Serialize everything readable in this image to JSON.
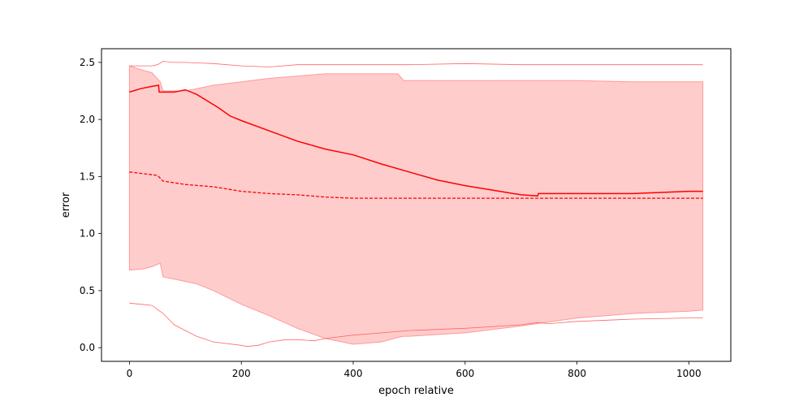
{
  "chart_data": {
    "type": "area",
    "title": "",
    "xlabel": "epoch relative",
    "ylabel": "error",
    "xlim": [
      -50,
      1075
    ],
    "ylim": [
      -0.12,
      2.62
    ],
    "grid": false,
    "legend": "none",
    "xticks": [
      0,
      200,
      400,
      600,
      800,
      1000
    ],
    "yticks": [
      0.0,
      0.5,
      1.0,
      1.5,
      2.0,
      2.5
    ],
    "xtick_labels": [
      "0",
      "200",
      "400",
      "600",
      "800",
      "1000"
    ],
    "ytick_labels": [
      "0.0",
      "0.5",
      "1.0",
      "1.5",
      "2.0",
      "2.5"
    ],
    "colors": {
      "line": "#ff0000",
      "band_fill": "#ffcccc",
      "band_edge": "#ff9999",
      "outer": "#ff6666"
    },
    "series": [
      {
        "role": "solid-line",
        "x": [
          0,
          20,
          40,
          52,
          53,
          60,
          80,
          100,
          120,
          140,
          160,
          180,
          200,
          250,
          300,
          350,
          400,
          450,
          500,
          550,
          600,
          650,
          700,
          730,
          731,
          800,
          900,
          950,
          1000,
          1025
        ],
        "y": [
          2.24,
          2.27,
          2.29,
          2.3,
          2.24,
          2.24,
          2.24,
          2.26,
          2.22,
          2.16,
          2.1,
          2.03,
          1.99,
          1.9,
          1.81,
          1.74,
          1.69,
          1.61,
          1.54,
          1.47,
          1.42,
          1.38,
          1.34,
          1.33,
          1.35,
          1.35,
          1.35,
          1.36,
          1.37,
          1.37
        ]
      },
      {
        "role": "dashed-line",
        "x": [
          0,
          50,
          60,
          100,
          150,
          200,
          250,
          300,
          350,
          400,
          450,
          500,
          600,
          700,
          800,
          900,
          1025
        ],
        "y": [
          1.54,
          1.51,
          1.46,
          1.43,
          1.41,
          1.37,
          1.35,
          1.34,
          1.32,
          1.31,
          1.31,
          1.31,
          1.31,
          1.31,
          1.31,
          1.31,
          1.31
        ]
      },
      {
        "role": "band",
        "x": [
          0,
          25,
          40,
          55,
          60,
          80,
          100,
          120,
          150,
          200,
          250,
          300,
          350,
          400,
          450,
          480,
          490,
          500,
          600,
          700,
          800,
          900,
          1000,
          1025
        ],
        "upper": [
          2.47,
          2.43,
          2.41,
          2.33,
          2.25,
          2.25,
          2.25,
          2.27,
          2.3,
          2.33,
          2.36,
          2.38,
          2.4,
          2.4,
          2.4,
          2.4,
          2.34,
          2.34,
          2.34,
          2.34,
          2.34,
          2.33,
          2.33,
          2.33
        ],
        "lower": [
          0.68,
          0.69,
          0.71,
          0.74,
          0.62,
          0.6,
          0.58,
          0.56,
          0.5,
          0.38,
          0.28,
          0.17,
          0.08,
          0.03,
          0.05,
          0.09,
          0.1,
          0.1,
          0.13,
          0.19,
          0.26,
          0.3,
          0.32,
          0.33
        ]
      },
      {
        "role": "outer-upper",
        "x": [
          0,
          40,
          50,
          60,
          80,
          100,
          150,
          200,
          250,
          300,
          400,
          500,
          600,
          700,
          800,
          900,
          1000,
          1025
        ],
        "y": [
          2.47,
          2.47,
          2.48,
          2.51,
          2.5,
          2.5,
          2.49,
          2.47,
          2.46,
          2.48,
          2.48,
          2.48,
          2.49,
          2.48,
          2.48,
          2.48,
          2.48,
          2.48
        ]
      },
      {
        "role": "outer-lower",
        "x": [
          0,
          20,
          40,
          60,
          80,
          100,
          120,
          150,
          200,
          210,
          230,
          250,
          280,
          300,
          330,
          350,
          400,
          500,
          600,
          700,
          730,
          750,
          800,
          900,
          1000,
          1025
        ],
        "y": [
          0.39,
          0.38,
          0.37,
          0.3,
          0.2,
          0.15,
          0.1,
          0.05,
          0.02,
          0.01,
          0.02,
          0.05,
          0.07,
          0.07,
          0.06,
          0.08,
          0.11,
          0.15,
          0.17,
          0.2,
          0.22,
          0.21,
          0.23,
          0.25,
          0.26,
          0.26
        ]
      }
    ]
  }
}
